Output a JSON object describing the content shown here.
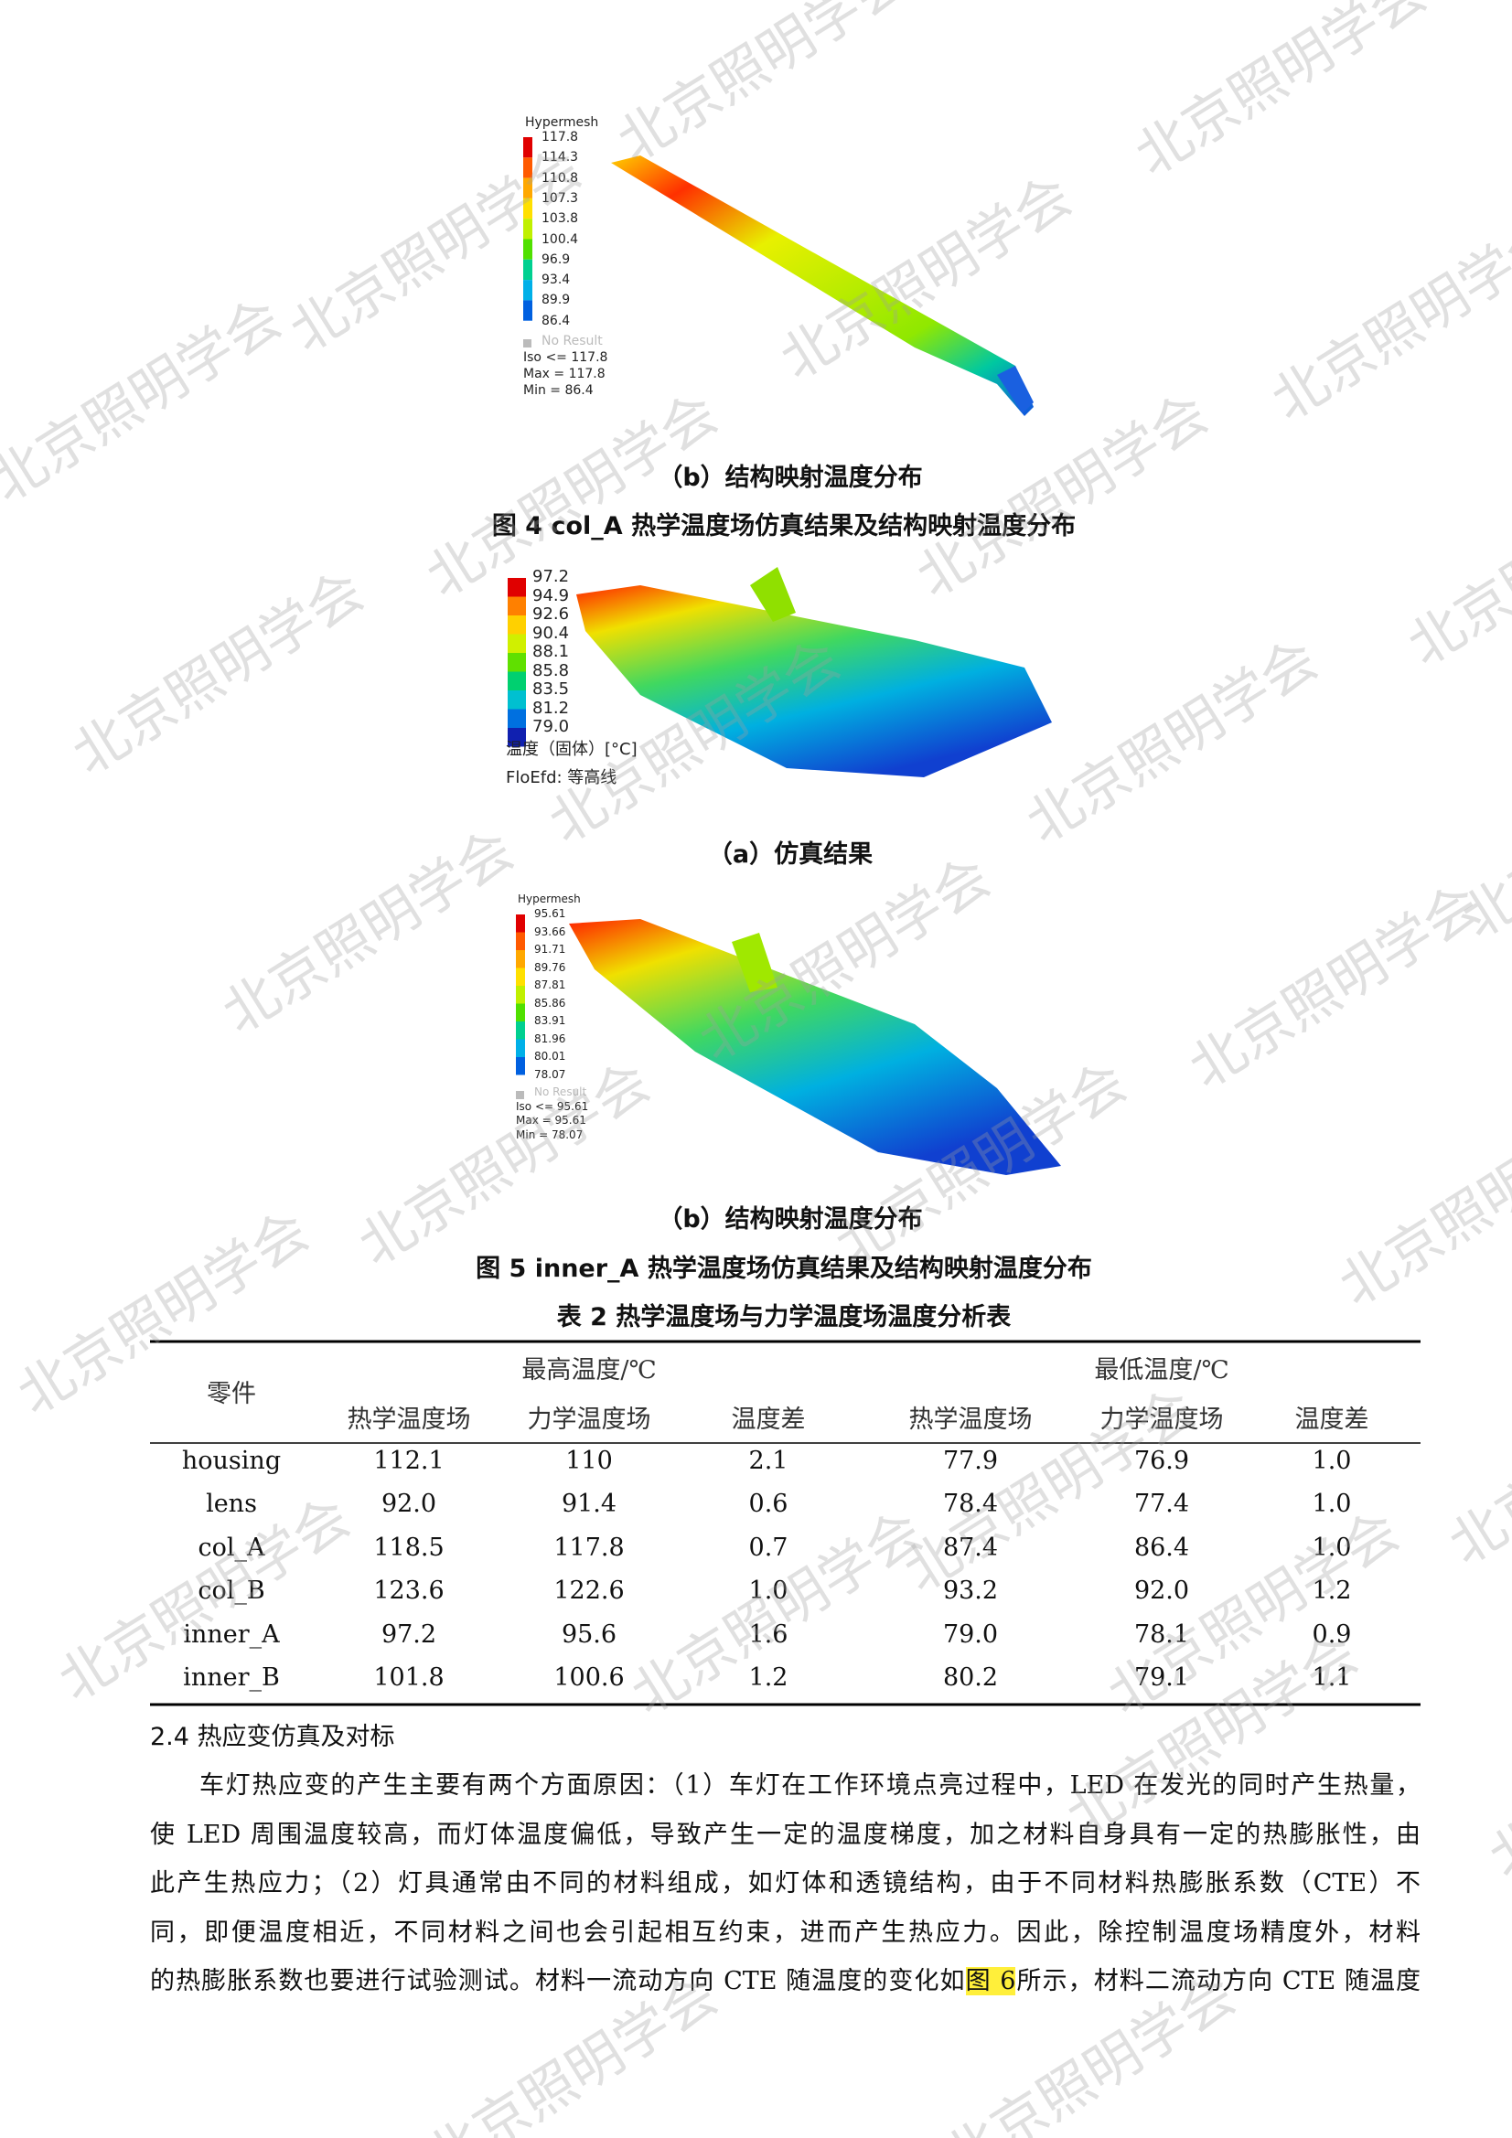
{
  "figure4b": {
    "legend_title": "Hypermesh",
    "legend_values": [
      "117.8",
      "114.3",
      "110.8",
      "107.3",
      "103.8",
      "100.4",
      "96.9",
      "93.4",
      "89.9",
      "86.4"
    ],
    "no_result": "No Result",
    "iso": "Iso <= 117.8",
    "max": "Max = 117.8",
    "min": "Min = 86.4",
    "caption": "（b）结构映射温度分布"
  },
  "figure4_caption": "图 4   col_A 热学温度场仿真结果及结构映射温度分布",
  "figure5a": {
    "legend_values": [
      "97.2",
      "94.9",
      "92.6",
      "90.4",
      "88.1",
      "85.8",
      "83.5",
      "81.2",
      "79.0"
    ],
    "unit_label": "温度（固体）[°C]",
    "source": "FloEfd: 等高线",
    "caption": "（a）仿真结果"
  },
  "figure5b": {
    "legend_title": "Hypermesh",
    "legend_values": [
      "95.61",
      "93.66",
      "91.71",
      "89.76",
      "87.81",
      "85.86",
      "83.91",
      "81.96",
      "80.01",
      "78.07"
    ],
    "no_result": "No Result",
    "iso": "Iso <= 95.61",
    "max": "Max = 95.61",
    "min": "Min = 78.07",
    "caption": "（b）结构映射温度分布"
  },
  "figure5_caption": "图 5   inner_A 热学温度场仿真结果及结构映射温度分布",
  "table": {
    "title": "表 2   热学温度场与力学温度场温度分析表",
    "header": {
      "part": "零件",
      "max_group": "最高温度/℃",
      "min_group": "最低温度/℃",
      "columns": [
        "热学温度场",
        "力学温度场",
        "温度差",
        "热学温度场",
        "力学温度场",
        "温度差"
      ]
    },
    "rows": [
      [
        "housing",
        "112.1",
        "110",
        "2.1",
        "77.9",
        "76.9",
        "1.0"
      ],
      [
        "lens",
        "92.0",
        "91.4",
        "0.6",
        "78.4",
        "77.4",
        "1.0"
      ],
      [
        "col_A",
        "118.5",
        "117.8",
        "0.7",
        "87.4",
        "86.4",
        "1.0"
      ],
      [
        "col_B",
        "123.6",
        "122.6",
        "1.0",
        "93.2",
        "92.0",
        "1.2"
      ],
      [
        "inner_A",
        "97.2",
        "95.6",
        "1.6",
        "79.0",
        "78.1",
        "0.9"
      ],
      [
        "inner_B",
        "101.8",
        "100.6",
        "1.2",
        "80.2",
        "79.1",
        "1.1"
      ]
    ]
  },
  "section": {
    "heading": "2.4 热应变仿真及对标",
    "lines": [
      "车灯热应变的产生主要有两个方面原因：（1）车灯在工作环境点亮过程中，LED 在发光的同时产生热量，",
      "使 LED 周围温度较高，而灯体温度偏低，导致产生一定的温度梯度，加之材料自身具有一定的热膨胀性，由",
      "此产生热应力；（2）灯具通常由不同的材料组成，如灯体和透镜结构，由于不同材料热膨胀系数（CTE）不",
      "同，即便温度相近，不同材料之间也会引起相互约束，进而产生热应力。因此，除控制温度场精度外，材料"
    ],
    "last_line": {
      "before": "的热膨胀系数也要进行试验测试。材料一流动方向 CTE 随温度的变化如",
      "link": "图 6",
      "after": "所示，材料二流动方向 CTE 随温度"
    }
  },
  "watermark": "北京照明学会"
}
